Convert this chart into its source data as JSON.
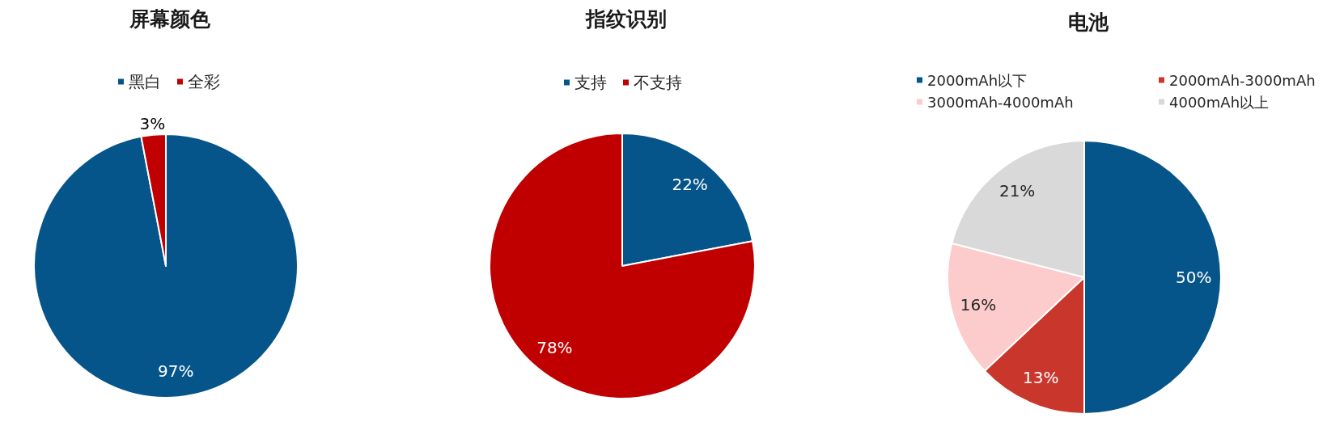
{
  "chart_data": [
    {
      "type": "pie",
      "title": "屏幕颜色",
      "categories": [
        "黑白",
        "全彩"
      ],
      "values": [
        97,
        3
      ],
      "colors": [
        "#06558a",
        "#c00000"
      ],
      "value_labels": [
        "97%",
        "3%"
      ],
      "legend": "top"
    },
    {
      "type": "pie",
      "title": "指纹识别",
      "categories": [
        "支持",
        "不支持"
      ],
      "values": [
        22,
        78
      ],
      "colors": [
        "#06558a",
        "#c00000"
      ],
      "value_labels": [
        "22%",
        "78%"
      ],
      "legend": "top"
    },
    {
      "type": "pie",
      "title": "电池",
      "categories": [
        "2000mAh以下",
        "2000mAh-3000mAh",
        "3000mAh-4000mAh",
        "4000mAh以上"
      ],
      "values": [
        50,
        13,
        16,
        21
      ],
      "colors": [
        "#06558a",
        "#c9372c",
        "#fccbcb",
        "#d9d9d9"
      ],
      "value_labels": [
        "50%",
        "13%",
        "16%",
        "21%"
      ],
      "legend": "top"
    }
  ]
}
